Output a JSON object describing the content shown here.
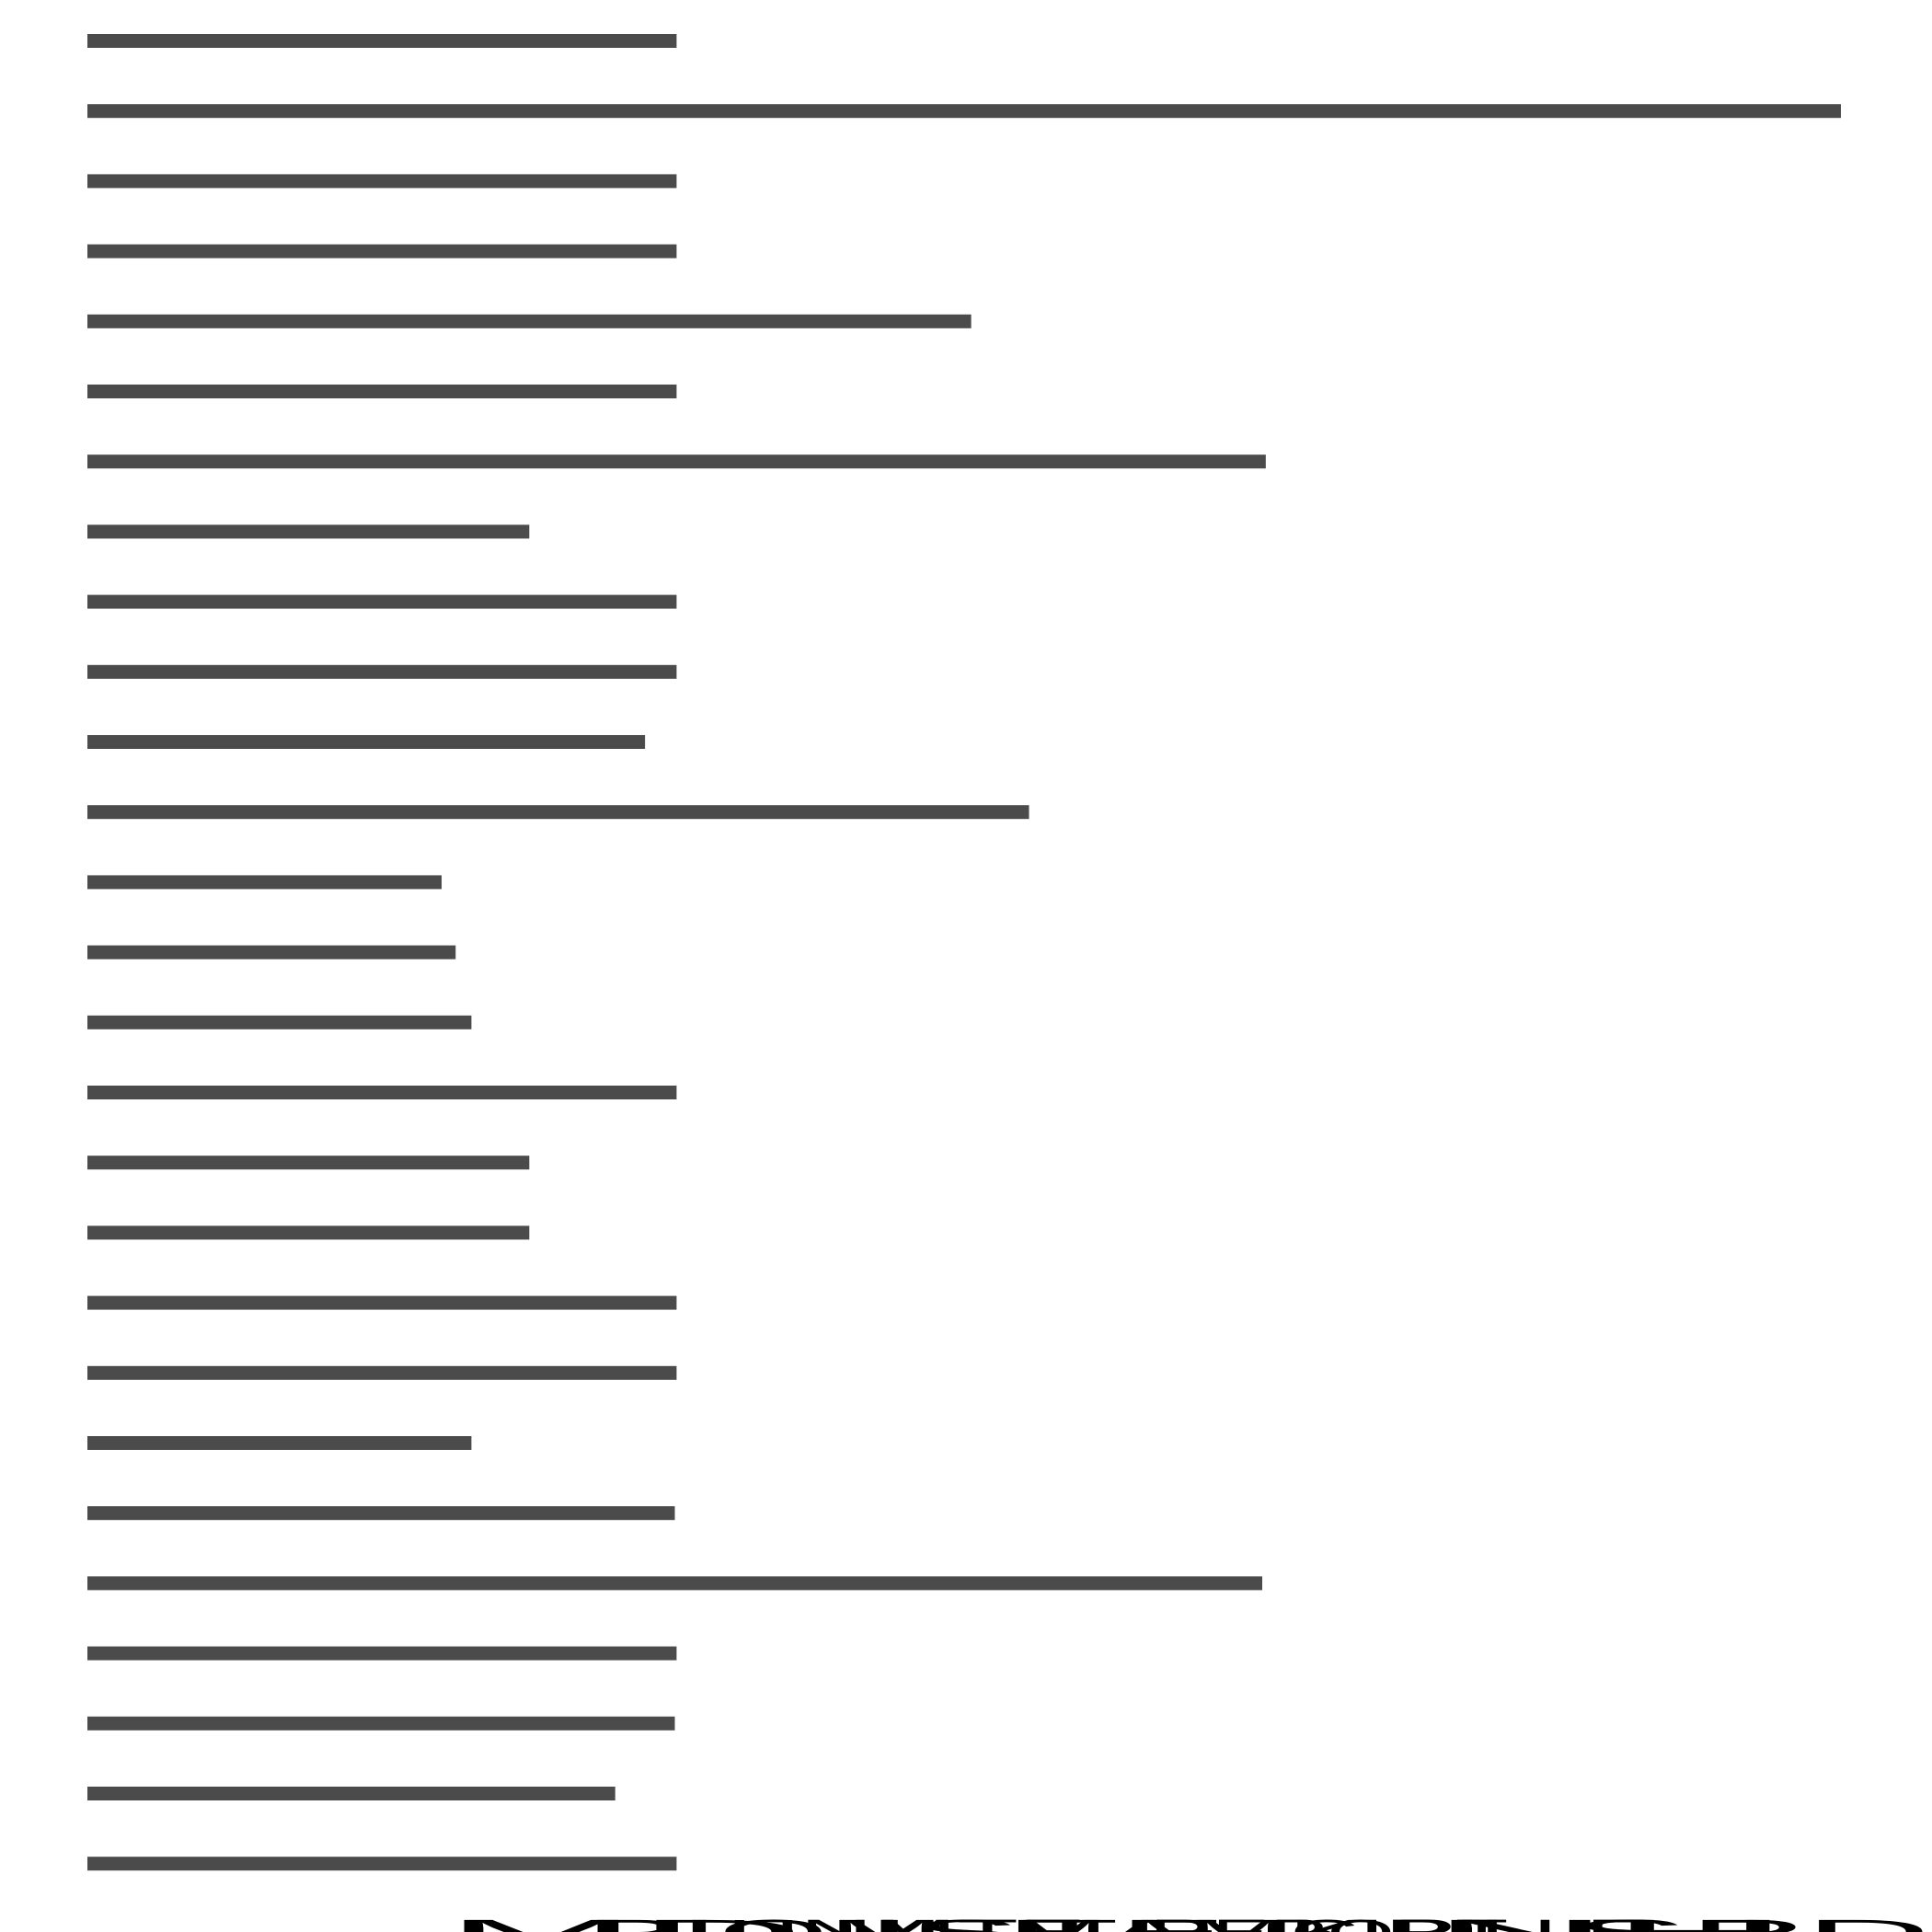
{
  "chart_data": {
    "type": "bar",
    "orientation": "horizontal",
    "title": "",
    "xlabel": "",
    "ylabel": "",
    "grid": false,
    "legend": "none",
    "xlim": [
      0,
      1
    ],
    "bar_color": "#4b4b4b",
    "values": [
      0.336,
      1.0,
      0.336,
      0.336,
      0.504,
      0.336,
      0.672,
      0.252,
      0.336,
      0.336,
      0.318,
      0.537,
      0.202,
      0.21,
      0.219,
      0.336,
      0.252,
      0.252,
      0.336,
      0.336,
      0.219,
      0.335,
      0.67,
      0.336,
      0.335,
      0.301,
      0.336
    ],
    "overlapping_bottom_labels": [
      "MD",
      "PIOM",
      "UNMTE",
      "ISTE",
      "MAMK",
      "REPORT",
      "CIRILLE",
      "NH",
      "SPD"
    ]
  }
}
